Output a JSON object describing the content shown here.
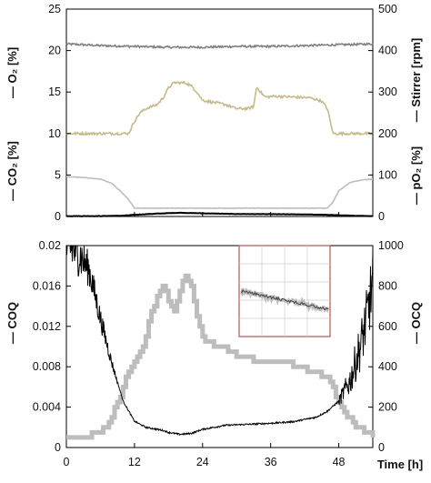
{
  "chart_data": [
    {
      "type": "line",
      "panel": "top",
      "xlim": [
        0,
        54
      ],
      "x_ticks": [
        0,
        12,
        24,
        36,
        48
      ],
      "ylim_left": [
        0,
        25
      ],
      "ylim_right": [
        0,
        500
      ],
      "y_ticks_left": [
        0,
        5,
        10,
        15,
        20,
        25
      ],
      "y_ticks_right": [
        0,
        100,
        200,
        300,
        400,
        500
      ],
      "left_labels": [
        {
          "text": "— O₂ [%]",
          "color": "#7f7f7f"
        },
        {
          "text": "— CO₂ [%]",
          "color": "#000000"
        }
      ],
      "right_labels": [
        {
          "text": "— Stirrer [rpm]",
          "color": "#c6bb86"
        },
        {
          "text": "— pO₂ [%]",
          "color": "#bdbdbd"
        }
      ],
      "series": [
        {
          "axis": "left",
          "color": "#7f7f7f",
          "x": [
            0,
            6,
            12,
            18,
            24,
            30,
            36,
            42,
            48,
            54
          ],
          "y": [
            20.8,
            20.6,
            20.5,
            20.4,
            20.4,
            20.5,
            20.5,
            20.6,
            20.7,
            20.8
          ]
        },
        {
          "axis": "left",
          "color": "#000000",
          "x": [
            0,
            6,
            10,
            12,
            16,
            20,
            24,
            30,
            36,
            42,
            46,
            50,
            54
          ],
          "y": [
            0.05,
            0.05,
            0.1,
            0.2,
            0.35,
            0.45,
            0.38,
            0.3,
            0.28,
            0.25,
            0.2,
            0.1,
            0.05
          ]
        },
        {
          "axis": "right",
          "color": "#c6bb86",
          "x": [
            0,
            11,
            12,
            13,
            14,
            15,
            16,
            17,
            18,
            19,
            21,
            22,
            23,
            24,
            28,
            30,
            32,
            33,
            33.5,
            35,
            37,
            40,
            43,
            45,
            46,
            47,
            54
          ],
          "y": [
            200,
            200,
            230,
            250,
            260,
            265,
            270,
            285,
            310,
            323,
            322,
            315,
            300,
            280,
            270,
            260,
            260,
            265,
            312,
            288,
            290,
            288,
            286,
            278,
            260,
            200,
            200
          ]
        },
        {
          "axis": "right",
          "color": "#bdbdbd",
          "x": [
            0,
            3,
            6,
            8,
            10,
            11,
            12,
            20,
            30,
            40,
            46,
            47,
            48,
            50,
            52,
            54
          ],
          "y": [
            96,
            94,
            90,
            80,
            55,
            40,
            20,
            20,
            20,
            20,
            20,
            35,
            62,
            82,
            88,
            90
          ]
        }
      ]
    },
    {
      "type": "line",
      "panel": "bottom",
      "xlim": [
        0,
        54
      ],
      "x_ticks": [
        0,
        12,
        24,
        36,
        48
      ],
      "x_tick_labels": [
        "0",
        "12",
        "24",
        "36",
        "48"
      ],
      "xlabel": "Time [h]",
      "ylim_left": [
        0,
        0.02
      ],
      "ylim_right": [
        0,
        1000
      ],
      "y_ticks_left": [
        "0",
        "0.004",
        "0.008",
        "0.012",
        "0.016",
        "0.02"
      ],
      "y_ticks_right": [
        "0",
        "200",
        "400",
        "600",
        "800",
        "1000"
      ],
      "ylabel_left": "— COQ",
      "ylabel_left_color": "#bdbdbd",
      "ylabel_right": "— OCQ",
      "ylabel_right_color": "#000000",
      "series": [
        {
          "axis": "left",
          "name_label": "COQ",
          "color": "#bdbdbd",
          "style": "step",
          "x": [
            0,
            2,
            4,
            6,
            7,
            8,
            9,
            10,
            11,
            12,
            13,
            14,
            15,
            16,
            17,
            18,
            19,
            20,
            21,
            22,
            23,
            24,
            26,
            28,
            30,
            32,
            34,
            36,
            38,
            40,
            42,
            44,
            46,
            47,
            48,
            49,
            50,
            51,
            52,
            53,
            54
          ],
          "y": [
            0.001,
            0.001,
            0.0012,
            0.0015,
            0.002,
            0.003,
            0.0045,
            0.006,
            0.0075,
            0.0085,
            0.0095,
            0.011,
            0.0135,
            0.0148,
            0.016,
            0.0145,
            0.0135,
            0.0155,
            0.017,
            0.016,
            0.013,
            0.0108,
            0.0102,
            0.0098,
            0.0092,
            0.0088,
            0.0086,
            0.0085,
            0.0084,
            0.0082,
            0.0078,
            0.0074,
            0.0068,
            0.0058,
            0.0045,
            0.0035,
            0.0028,
            0.0022,
            0.0018,
            0.0015,
            0.0012
          ]
        },
        {
          "axis": "right",
          "name_label": "OCQ",
          "color": "#000000",
          "style": "noisy",
          "x": [
            0,
            2,
            4,
            6,
            8,
            10,
            12,
            14,
            16,
            17,
            18,
            19,
            20,
            22,
            24,
            28,
            32,
            36,
            40,
            44,
            46,
            48,
            50,
            52,
            53,
            54
          ],
          "y": [
            1000,
            970,
            880,
            640,
            420,
            230,
            130,
            100,
            90,
            85,
            75,
            70,
            65,
            70,
            90,
            110,
            115,
            120,
            128,
            150,
            180,
            230,
            330,
            520,
            650,
            820
          ]
        }
      ],
      "inset": {
        "present": true,
        "border_color": "#c0504d"
      }
    }
  ]
}
